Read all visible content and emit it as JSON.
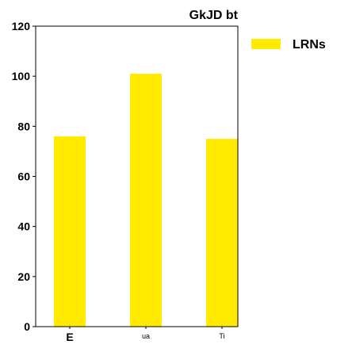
{
  "chart_data": {
    "type": "bar",
    "title": "GkJD bt",
    "xlabel": "",
    "ylabel": "",
    "categories": [
      "E",
      "ua",
      "Ti"
    ],
    "series": [
      {
        "name": "LRNs",
        "values": [
          76,
          101,
          75
        ],
        "color": "#ffea00"
      }
    ],
    "ylim": [
      0,
      120
    ],
    "yticks": [
      0,
      20,
      40,
      60,
      80,
      100,
      120
    ],
    "ytick_labels": [
      "0",
      "20",
      "40",
      "60",
      "80",
      "100",
      "120"
    ],
    "grid": false,
    "legend": "outside-top-right"
  }
}
